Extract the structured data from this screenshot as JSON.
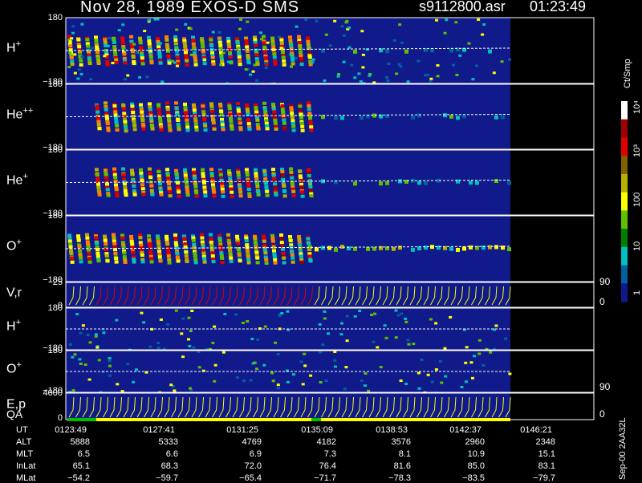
{
  "header": {
    "title": "Nov 28, 1989   EXOS-D SMS",
    "file": "s9112800.asr",
    "time": "01:23:49"
  },
  "panels": [
    {
      "id": "hplus",
      "label": "H",
      "sup": "+",
      "tick_top": "180",
      "tick_bottom": "−180"
    },
    {
      "id": "heplus2",
      "label": "He",
      "sup": "++",
      "tick_top": "180",
      "tick_bottom": "−180"
    },
    {
      "id": "heplus",
      "label": "He",
      "sup": "+",
      "tick_top": "180",
      "tick_bottom": "−180"
    },
    {
      "id": "oplus",
      "label": "O",
      "sup": "+",
      "tick_top": "180",
      "tick_bottom": "−180"
    },
    {
      "id": "vr",
      "label": "V,r",
      "sup": "",
      "tick_top": "25",
      "tick_bottom": "0",
      "right_top": "90",
      "right_bottom": "0"
    },
    {
      "id": "hplus2",
      "label": "H",
      "sup": "+",
      "tick_top": "180",
      "tick_bottom": "−180"
    },
    {
      "id": "oplus2",
      "label": "O",
      "sup": "+",
      "tick_top": "180",
      "tick_bottom": "−180",
      "right_bottom": "90"
    },
    {
      "id": "ep",
      "label": "E,p",
      "sup": "",
      "tick_top": "4000",
      "tick_bottom": "0",
      "right_bottom": "0"
    }
  ],
  "qa_label": "QA",
  "colorbar": {
    "title": "Ct/Smp",
    "labels": [
      "10⁴",
      "10³",
      "100",
      "10",
      "1"
    ],
    "colors": [
      "#ffffff",
      "#a00000",
      "#e00000",
      "#806000",
      "#b8b000",
      "#ffff00",
      "#60c000",
      "#008000",
      "#00c0c0",
      "#0060a0",
      "#101890"
    ]
  },
  "table": {
    "rows": [
      {
        "name": "UT",
        "values": [
          "0123:49",
          "0127:41",
          "0131:25",
          "0135:09",
          "0138:53",
          "0142:37",
          "0146:21"
        ]
      },
      {
        "name": "ALT",
        "values": [
          "5888",
          "5333",
          "4769",
          "4182",
          "3576",
          "2960",
          "2348"
        ]
      },
      {
        "name": "MLT",
        "values": [
          "6.5",
          "6.6",
          "6.9",
          "7.3",
          "8.1",
          "10.9",
          "15.1"
        ]
      },
      {
        "name": "InLat",
        "values": [
          "65.1",
          "68.3",
          "72.0",
          "76.4",
          "81.6",
          "85.0",
          "83.1"
        ]
      },
      {
        "name": "MLat",
        "values": [
          "−54.2",
          "−59.7",
          "−65.4",
          "−71.7",
          "−78.3",
          "−83.5",
          "−79.7"
        ]
      }
    ]
  },
  "footer_id": "Sep-00 2AA32L",
  "chart_data": {
    "type": "heatmap",
    "title": "Nov 28, 1989   EXOS-D SMS",
    "x": [
      "0123:49",
      "0127:41",
      "0131:25",
      "0135:09",
      "0138:53",
      "0142:37",
      "0146:21"
    ],
    "panels": [
      "H+",
      "He++",
      "He+",
      "O+",
      "V,r",
      "H+",
      "O+",
      "E,p"
    ],
    "y_ranges": {
      "H+": [
        -180,
        180
      ],
      "He++": [
        -180,
        180
      ],
      "He+": [
        -180,
        180
      ],
      "O+": [
        -180,
        180
      ],
      "V,r": [
        0,
        25
      ],
      "E,p": [
        0,
        4000
      ]
    },
    "color_scale": "log",
    "color_range": [
      1,
      10000
    ],
    "color_unit": "Ct/Smp"
  }
}
